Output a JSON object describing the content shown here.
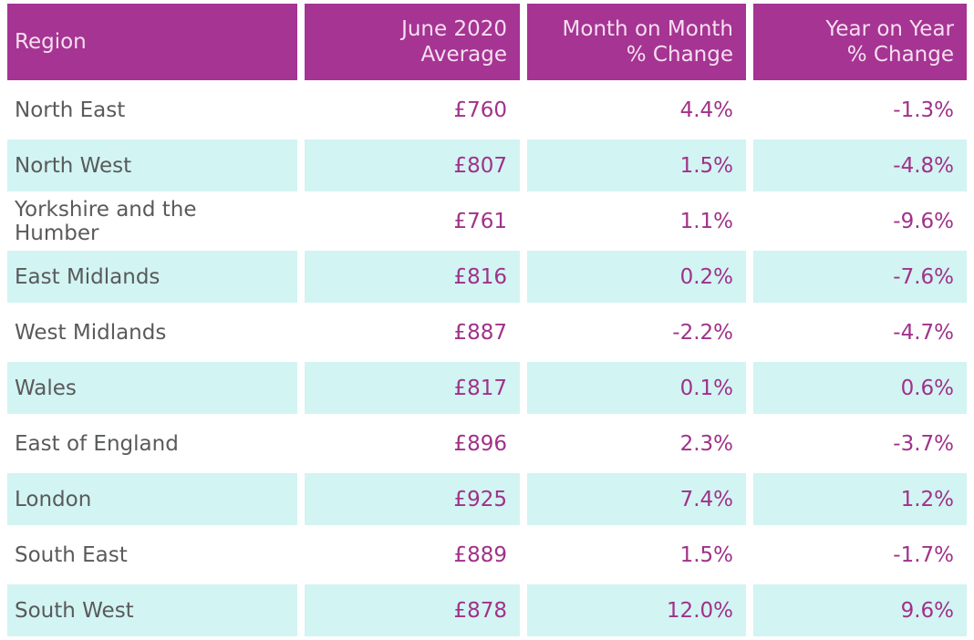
{
  "colors": {
    "header_bg": "#a53492",
    "header_text": "#f6dff0",
    "row_alt_bg": "#d2f4f3",
    "row_bg": "#ffffff",
    "region_text": "#595a5a",
    "value_text": "#a03189"
  },
  "table": {
    "headers": [
      {
        "label": "Region",
        "align": "left"
      },
      {
        "label": "June 2020\nAverage",
        "align": "right"
      },
      {
        "label": "Month on Month\n% Change",
        "align": "right"
      },
      {
        "label": "Year on Year\n% Change",
        "align": "right"
      }
    ],
    "rows": [
      {
        "cells": [
          "North East",
          "£760",
          "4.4%",
          "-1.3%"
        ]
      },
      {
        "cells": [
          "North West",
          "£807",
          "1.5%",
          "-4.8%"
        ]
      },
      {
        "cells": [
          "Yorkshire and the Humber",
          "£761",
          "1.1%",
          "-9.6%"
        ]
      },
      {
        "cells": [
          "East Midlands",
          "£816",
          "0.2%",
          "-7.6%"
        ]
      },
      {
        "cells": [
          "West Midlands",
          "£887",
          "-2.2%",
          "-4.7%"
        ]
      },
      {
        "cells": [
          "Wales",
          "£817",
          "0.1%",
          "0.6%"
        ]
      },
      {
        "cells": [
          "East of England",
          "£896",
          "2.3%",
          "-3.7%"
        ]
      },
      {
        "cells": [
          "London",
          "£925",
          "7.4%",
          "1.2%"
        ]
      },
      {
        "cells": [
          "South East",
          "£889",
          "1.5%",
          "-1.7%"
        ]
      },
      {
        "cells": [
          "South West",
          "£878",
          "12.0%",
          "9.6%"
        ]
      }
    ]
  },
  "chart_data": {
    "type": "table",
    "title": "",
    "columns": [
      "Region",
      "June 2020 Average",
      "Month on Month % Change",
      "Year on Year % Change"
    ],
    "rows": [
      [
        "North East",
        "£760",
        "4.4%",
        "-1.3%"
      ],
      [
        "North West",
        "£807",
        "1.5%",
        "-4.8%"
      ],
      [
        "Yorkshire and the Humber",
        "£761",
        "1.1%",
        "-9.6%"
      ],
      [
        "East Midlands",
        "£816",
        "0.2%",
        "-7.6%"
      ],
      [
        "West Midlands",
        "£887",
        "-2.2%",
        "-4.7%"
      ],
      [
        "Wales",
        "£817",
        "0.1%",
        "0.6%"
      ],
      [
        "East of England",
        "£896",
        "2.3%",
        "-3.7%"
      ],
      [
        "London",
        "£925",
        "7.4%",
        "1.2%"
      ],
      [
        "South East",
        "£889",
        "1.5%",
        "-1.7%"
      ],
      [
        "South West",
        "£878",
        "12.0%",
        "9.6%"
      ]
    ],
    "layout": {
      "header_style": "magenta background, pale pink right-aligned text",
      "zebra_striping": "white / pale cyan alternating rows",
      "value_columns_align": "right"
    }
  }
}
